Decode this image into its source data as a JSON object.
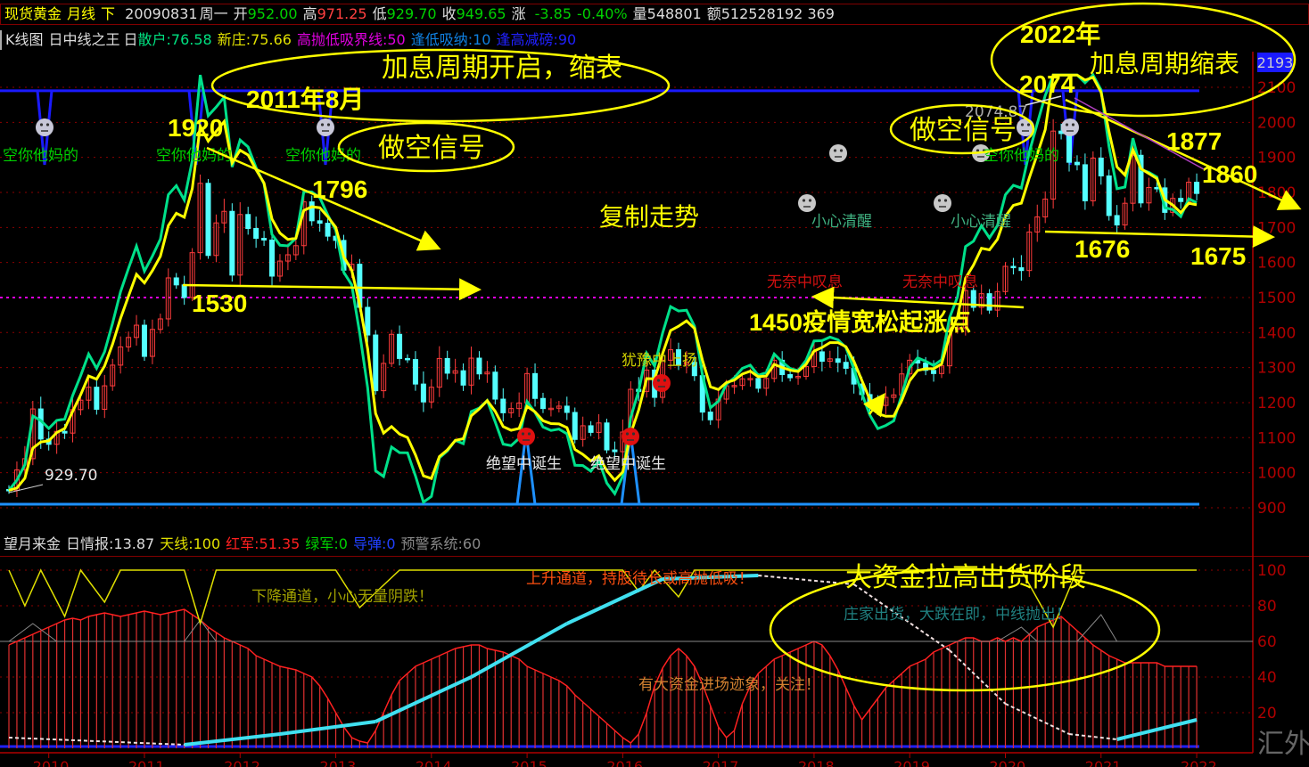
{
  "header": {
    "symbol": "现货黄金",
    "period": "月线",
    "direction": "下",
    "date": "20090831",
    "weekday": "周一",
    "open_label": "开",
    "open": "952.00",
    "high_label": "高",
    "high": "971.25",
    "low_label": "低",
    "low": "929.70",
    "close_label": "收",
    "close": "949.65",
    "change_label": "涨",
    "change": "-3.85",
    "change_pct": "-0.40%",
    "volume_label": "量",
    "volume": "548801",
    "amount_label": "额",
    "amount": "512528192 369"
  },
  "indicator_bar": {
    "chart_type": "K线图",
    "indicator": "日中线之王",
    "sep": "日",
    "retail": "散户:76.58",
    "new_dealer": "新庄:75.66",
    "boundary": "高抛低吸界线:50",
    "buy_low": "逢低吸纳:10",
    "sell_high": "逢高减磅:90"
  },
  "lower_bar": {
    "name": "望月来金",
    "info": "日情报:13.87",
    "sky_line": "天线:100",
    "red_army": "红军:51.35",
    "green_army": "绿军:0",
    "missile": "导弹:0",
    "warning": "预警系统:60"
  },
  "colors": {
    "up": "#ff3c3c",
    "down": "#54ffff",
    "grid": "#8b0000",
    "axis": "#b00000",
    "blue_line": "#1a1aff",
    "ma_green": "#00e08a",
    "ma_yellow": "#ffff00"
  },
  "price_axis": {
    "ticks": [
      "2100",
      "2000",
      "1900",
      "1800",
      "1700",
      "1600",
      "1500",
      "1400",
      "1300",
      "1200",
      "1100",
      "1000",
      "900"
    ],
    "current_tag": "2193"
  },
  "lower_axis": {
    "ticks": [
      "100",
      "80",
      "60",
      "40",
      "20"
    ]
  },
  "time_axis": {
    "ticks": [
      "2010",
      "2011",
      "2012",
      "2013",
      "2014",
      "2015",
      "2016",
      "2017",
      "2018",
      "2019",
      "2020",
      "2021",
      "2022"
    ]
  },
  "chart_data": {
    "type": "candlestick",
    "start_month": "2009-08",
    "interval": "monthly",
    "ylim": [
      880,
      2140
    ],
    "first_open": 952.0,
    "closes": [
      949.65,
      1008,
      1040,
      1182,
      1096,
      1081,
      1118,
      1113,
      1180,
      1207,
      1244,
      1181,
      1248,
      1307,
      1359,
      1386,
      1421,
      1332,
      1409,
      1439,
      1556,
      1536,
      1500,
      1628,
      1826,
      1620,
      1713,
      1746,
      1564,
      1737,
      1697,
      1669,
      1664,
      1561,
      1604,
      1622,
      1648,
      1773,
      1719,
      1712,
      1675,
      1663,
      1578,
      1595,
      1472,
      1393,
      1234,
      1312,
      1395,
      1326,
      1323,
      1253,
      1202,
      1244,
      1326,
      1284,
      1291,
      1250,
      1327,
      1282,
      1287,
      1210,
      1171,
      1183,
      1199,
      1283,
      1212,
      1183,
      1184,
      1190,
      1172,
      1095,
      1134,
      1115,
      1142,
      1065,
      1060,
      1116,
      1238,
      1232,
      1293,
      1215,
      1321,
      1351,
      1309,
      1315,
      1277,
      1173,
      1151,
      1210,
      1248,
      1249,
      1268,
      1269,
      1241,
      1269,
      1321,
      1280,
      1271,
      1275,
      1303,
      1345,
      1318,
      1325,
      1315,
      1298,
      1253,
      1223,
      1201,
      1192,
      1215,
      1222,
      1282,
      1321,
      1313,
      1292,
      1283,
      1305,
      1409,
      1413,
      1520,
      1472,
      1511,
      1464,
      1517,
      1589,
      1585,
      1577,
      1687,
      1730,
      1781,
      1975,
      1968,
      1886,
      1879,
      1776,
      1898,
      1847,
      1734,
      1707,
      1769,
      1906,
      1770,
      1814,
      1813,
      1743,
      1783,
      1774,
      1829,
      1797
    ],
    "horizontal_levels": {
      "upper_blue": 2090,
      "lower_blue": 910,
      "magenta_dotted": 1500
    },
    "lower_panel": {
      "ylim": [
        0,
        100
      ],
      "red_histogram": [
        58,
        60,
        62,
        64,
        66,
        68,
        70,
        72,
        73,
        72,
        74,
        75,
        76,
        75,
        74,
        75,
        76,
        77,
        76,
        75,
        76,
        77,
        78,
        75,
        72,
        68,
        65,
        62,
        60,
        58,
        56,
        52,
        50,
        48,
        46,
        45,
        44,
        42,
        40,
        35,
        28,
        20,
        12,
        6,
        4,
        3,
        10,
        20,
        30,
        38,
        42,
        46,
        48,
        50,
        52,
        54,
        56,
        57,
        58,
        58,
        56,
        55,
        54,
        52,
        50,
        46,
        44,
        42,
        40,
        38,
        35,
        30,
        26,
        22,
        18,
        14,
        10,
        6,
        3,
        8,
        20,
        35,
        45,
        52,
        56,
        52,
        46,
        36,
        24,
        12,
        6,
        10,
        25,
        35,
        42,
        46,
        50,
        52,
        54,
        56,
        58,
        60,
        58,
        52,
        44,
        34,
        24,
        16,
        22,
        28,
        34,
        38,
        42,
        46,
        48,
        50,
        54,
        56,
        58,
        60,
        62,
        62,
        60,
        60,
        62,
        60,
        62,
        60,
        64,
        68,
        70,
        72,
        74,
        70,
        66,
        62,
        58,
        55,
        52,
        50,
        48,
        48,
        48,
        48,
        48,
        46,
        46,
        46,
        46,
        46
      ],
      "trend_line": [
        [
          "2009-08",
          6
        ],
        [
          "2011-06",
          2
        ],
        [
          "2012-06",
          8
        ],
        [
          "2013-06",
          15
        ],
        [
          "2014-06",
          40
        ],
        [
          "2015-06",
          70
        ],
        [
          "2016-06",
          95
        ],
        [
          "2017-06",
          97
        ],
        [
          "2018-06",
          92
        ],
        [
          "2019-06",
          55
        ],
        [
          "2020-01",
          25
        ],
        [
          "2020-09",
          8
        ],
        [
          "2021-03",
          5
        ],
        [
          "2022-01",
          16
        ]
      ],
      "sky_line": [
        [
          "2009-08",
          100
        ],
        [
          "2009-10",
          80
        ],
        [
          "2009-12",
          100
        ],
        [
          "2010-03",
          74
        ],
        [
          "2010-05",
          100
        ],
        [
          "2010-08",
          82
        ],
        [
          "2010-10",
          100
        ],
        [
          "2011-06",
          100
        ],
        [
          "2011-08",
          70
        ],
        [
          "2011-10",
          100
        ],
        [
          "2013-01",
          100
        ],
        [
          "2013-04",
          79
        ],
        [
          "2013-09",
          100
        ],
        [
          "2016-01",
          100
        ],
        [
          "2016-03",
          88
        ],
        [
          "2016-05",
          100
        ],
        [
          "2016-08",
          85
        ],
        [
          "2016-10",
          100
        ],
        [
          "2020-03",
          100
        ],
        [
          "2020-07",
          68
        ],
        [
          "2020-10",
          100
        ],
        [
          "2022-01",
          100
        ]
      ],
      "warning_line": [
        [
          "2009-08",
          60
        ],
        [
          "2009-11",
          70
        ],
        [
          "2010-02",
          60
        ],
        [
          "2011-06",
          60
        ],
        [
          "2011-08",
          72
        ],
        [
          "2011-10",
          60
        ],
        [
          "2019-12",
          60
        ],
        [
          "2020-03",
          68
        ],
        [
          "2020-05",
          60
        ],
        [
          "2020-10",
          60
        ],
        [
          "2021-01",
          75
        ],
        [
          "2021-03",
          60
        ],
        [
          "2022-01",
          60
        ]
      ]
    }
  },
  "labels": {
    "short_signal_1": "空你他妈的",
    "short_signal_2": "空你他妈的",
    "short_signal_3": "空你他妈的",
    "short_signal_4": "空你他妈的",
    "careful_1": "小心清醒",
    "careful_2": "小心清醒",
    "sigh_1": "无奈中叹息",
    "sigh_2": "无奈中叹息",
    "despair_1": "绝望中诞生",
    "despair_2": "绝望中诞生",
    "hesitate": "犹豫中上扬",
    "low_value": "929.70",
    "high_value": "2074.87",
    "down_channel": "下降通道，小心无量阴跌！",
    "up_channel": "上升通道，持股待长或高抛低吸！",
    "dealer_out": "庄家出货，大跌在即，中线抛出！",
    "capital_in": "有大资金进场迹象，关注！"
  },
  "annotations": {
    "rate_hike_start": "加息周期开启，缩表",
    "aug_2011": "2011年8月",
    "p1920": "1920",
    "short_signal_a": "做空信号",
    "p1796": "1796",
    "p1530": "1530",
    "copy_trend": "复制走势",
    "year_2022": "2022年",
    "rate_hike_cycle": "加息周期缩表",
    "p2074": "2074",
    "short_signal_b": "做空信号",
    "p1877": "1877",
    "p1860": "1860",
    "p1676": "1676",
    "p1675": "1675",
    "covid_easing": "1450疫情宽松起涨点",
    "big_money": "大资金拉高出货阶段"
  },
  "watermark": "汇外网"
}
